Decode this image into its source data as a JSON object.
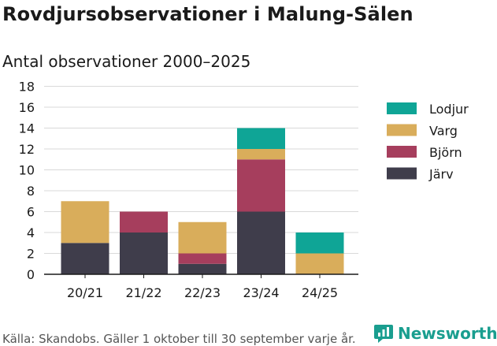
{
  "header": {
    "title": "Rovdjursobservationer i Malung-Sälen",
    "subtitle": "Antal observationer 2000–2025"
  },
  "footer": {
    "source": "Källa: Skandobs. Gäller 1 oktober till 30 september varje år.",
    "brand": "Newsworthy",
    "brand_icon": "chart-bubble-icon",
    "brand_color": "#1a9e8f"
  },
  "chart_data": {
    "type": "bar",
    "stacked": true,
    "title": "Rovdjursobservationer i Malung-Sälen",
    "subtitle": "Antal observationer 2000–2025",
    "xlabel": "",
    "ylabel": "",
    "ylim": [
      0,
      18
    ],
    "yticks": [
      0,
      2,
      4,
      6,
      8,
      10,
      12,
      14,
      16,
      18
    ],
    "grid": true,
    "legend_position": "right",
    "categories": [
      "20/21",
      "21/22",
      "22/23",
      "23/24",
      "24/25"
    ],
    "series": [
      {
        "name": "Järv",
        "color": "#3f3d4b",
        "values": [
          3,
          4,
          1,
          6,
          0
        ]
      },
      {
        "name": "Björn",
        "color": "#a63e5d",
        "values": [
          0,
          2,
          1,
          5,
          0
        ]
      },
      {
        "name": "Varg",
        "color": "#d9ad5b",
        "values": [
          4,
          0,
          3,
          1,
          2
        ]
      },
      {
        "name": "Lodjur",
        "color": "#0fa596",
        "values": [
          0,
          0,
          0,
          2,
          2
        ]
      }
    ],
    "legend_order": [
      "Lodjur",
      "Varg",
      "Björn",
      "Järv"
    ]
  }
}
